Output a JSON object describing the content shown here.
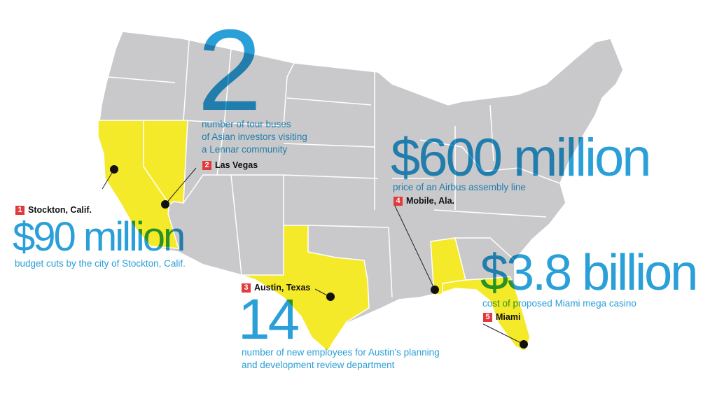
{
  "colors": {
    "land": "#c9c9cb",
    "highlight": "#f5ea2a",
    "text": "#2a9fd8",
    "badge": "#e23a3a"
  },
  "callouts": [
    {
      "number": "1",
      "place": "Stockton, Calif.",
      "figure": "$90 million",
      "caption": "budget cuts by the city of Stockton, Calif."
    },
    {
      "number": "2",
      "place": "Las Vegas",
      "figure": "2",
      "caption_lines": [
        "number of tour buses",
        "of Asian investors visiting",
        "a Lennar community"
      ]
    },
    {
      "number": "3",
      "place": "Austin, Texas",
      "figure": "14",
      "caption_lines": [
        "number of new employees for Austin’s planning",
        "and development review department"
      ]
    },
    {
      "number": "4",
      "place": "Mobile, Ala.",
      "figure": "$600 million",
      "caption": "price of an Airbus assembly line"
    },
    {
      "number": "5",
      "place": "Miami",
      "figure": "$3.8 billion",
      "caption": "cost of proposed Miami mega casino"
    }
  ],
  "highlighted_states": [
    "California",
    "Nevada",
    "Texas",
    "Alabama",
    "Florida"
  ]
}
